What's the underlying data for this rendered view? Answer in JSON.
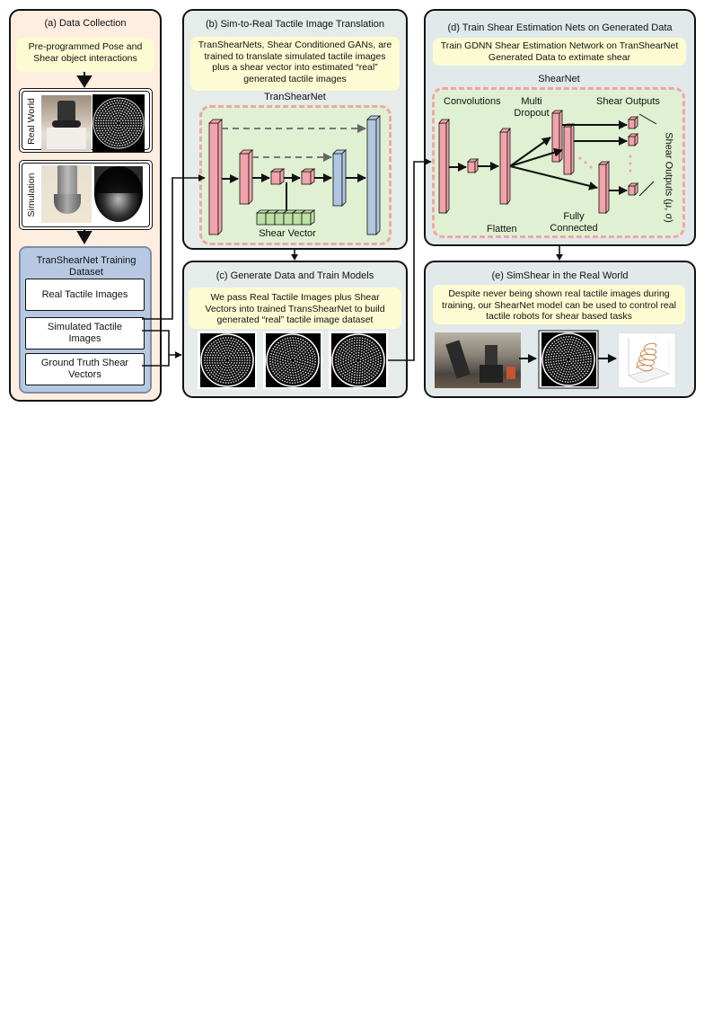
{
  "panel_a": {
    "title": "(a) Data Collection",
    "note": "Pre-programmed Pose and Shear object interactions",
    "real_world_label": "Real World",
    "simulation_label": "Simulation",
    "dataset_title": "TranShearNet Training Dataset",
    "items": [
      "Real Tactile Images",
      "Simulated Tactile Images",
      "Ground Truth Shear Vectors"
    ]
  },
  "panel_b": {
    "title": "(b) Sim-to-Real Tactile Image Translation",
    "note": "TranShearNets, Shear Conditioned GANs, are trained to translate simulated tactile images plus a shear vector into estimated “real” generated tactile images",
    "network_label": "TranShearNet",
    "shear_vector_label": "Shear Vector"
  },
  "panel_c": {
    "title": "(c) Generate Data and Train Models",
    "note": "We pass Real Tactile Images plus Shear Vectors into trained TransShearNet to build generated “real” tactile image dataset"
  },
  "panel_d": {
    "title": "(d) Train Shear Estimation Nets on Generated Data",
    "note": "Train GDNN Shear Estimation Network on TranShearNet Generated Data to extimate shear",
    "network_label": "ShearNet",
    "convolutions_label": "Convolutions",
    "multi_dropout_label": "Multi Dropout",
    "shear_outputs_label": "Shear Outputs",
    "flatten_label": "Flatten",
    "fully_connected_label": "Fully Connected",
    "side_label": "Shear Outputs (μ, σ)"
  },
  "panel_e": {
    "title": "(e) SimShear in the Real World",
    "note": "Despite never being shown real tactile images during training, our ShearNet model can be used to control real tactile robots for shear based tasks"
  },
  "colors": {
    "panel_a_bg": "#fdeee0",
    "panel_bc_bg": "#e5ecea",
    "panel_d_bg": "#e1e9ea",
    "dataset_bg": "#b7c9e2",
    "note_bg": "#fdfbd2",
    "dash": "#f2a5a8",
    "net_bg": "#dff0d3",
    "layer_pink": "#f2a3ab",
    "layer_blue": "#b1c6e0",
    "shear_green": "#bde0a6"
  }
}
